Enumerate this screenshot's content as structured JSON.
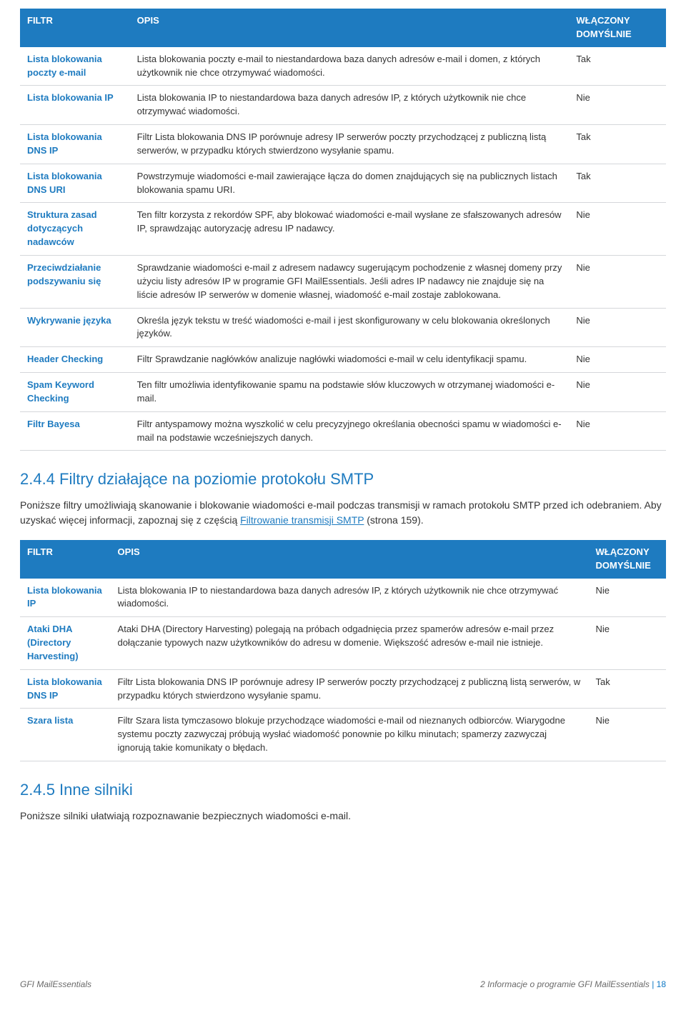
{
  "table1": {
    "headers": {
      "filter": "FILTR",
      "desc": "OPIS",
      "state": "WŁĄCZONY DOMYŚLNIE"
    },
    "rows": [
      {
        "filter": "Lista blokowania poczty e-mail",
        "desc": "Lista blokowania poczty e-mail to niestandardowa baza danych adresów e-mail i domen, z których użytkownik nie chce otrzymywać wiadomości.",
        "state": "Tak"
      },
      {
        "filter": "Lista blokowania IP",
        "desc": "Lista blokowania IP to niestandardowa baza danych adresów IP, z których użytkownik nie chce otrzymywać wiadomości.",
        "state": "Nie"
      },
      {
        "filter": "Lista blokowania DNS IP",
        "desc": "Filtr Lista blokowania DNS IP porównuje adresy IP serwerów poczty przychodzącej z publiczną listą serwerów, w przypadku których stwierdzono wysyłanie spamu.",
        "state": "Tak"
      },
      {
        "filter": "Lista blokowania DNS URI",
        "desc": "Powstrzymuje wiadomości e-mail zawierające łącza do domen znajdujących się na publicznych listach blokowania spamu URI.",
        "state": "Tak"
      },
      {
        "filter": "Struktura zasad dotyczących nadawców",
        "desc": "Ten filtr korzysta z rekordów SPF, aby blokować wiadomości e-mail wysłane ze sfałszowanych adresów IP, sprawdzając autoryzację adresu IP nadawcy.",
        "state": "Nie"
      },
      {
        "filter": "Przeciwdziałanie podszywaniu się",
        "desc": "Sprawdzanie wiadomości e-mail z adresem nadawcy sugerującym pochodzenie z własnej domeny przy użyciu listy adresów IP w programie GFI MailEssentials. Jeśli adres IP nadawcy nie znajduje się na liście adresów IP serwerów w domenie własnej, wiadomość e-mail zostaje zablokowana.",
        "state": "Nie"
      },
      {
        "filter": "Wykrywanie języka",
        "desc": "Określa język tekstu w treść wiadomości e-mail i jest skonfigurowany w celu blokowania określonych języków.",
        "state": "Nie"
      },
      {
        "filter": "Header Checking",
        "desc": "Filtr Sprawdzanie nagłówków analizuje nagłówki wiadomości e-mail w celu identyfikacji spamu.",
        "state": "Nie"
      },
      {
        "filter": "Spam Keyword Checking",
        "desc": "Ten filtr umożliwia identyfikowanie spamu na podstawie słów kluczowych w otrzymanej wiadomości e-mail.",
        "state": "Nie"
      },
      {
        "filter": "Filtr Bayesa",
        "desc": "Filtr antyspamowy można wyszkolić w celu precyzyjnego określania obecności spamu w wiadomości e-mail na podstawie wcześniejszych danych.",
        "state": "Nie"
      }
    ]
  },
  "section244": {
    "title": "2.4.4 Filtry działające na poziomie protokołu SMTP",
    "para_a": "Poniższe filtry umożliwiają skanowanie i blokowanie wiadomości e-mail podczas transmisji w ramach protokołu SMTP przed ich odebraniem. Aby uzyskać więcej informacji, zapoznaj się z częścią ",
    "link": "Filtrowanie transmisji SMTP",
    "para_b": " (strona 159)."
  },
  "table2": {
    "headers": {
      "filter": "FILTR",
      "desc": "OPIS",
      "state": "WŁĄCZONY DOMYŚLNIE"
    },
    "rows": [
      {
        "filter": "Lista blokowania IP",
        "desc": "Lista blokowania IP to niestandardowa baza danych adresów IP, z których użytkownik nie chce otrzymywać wiadomości.",
        "state": "Nie"
      },
      {
        "filter": "Ataki DHA (Directory Harvesting)",
        "desc": "Ataki DHA (Directory Harvesting) polegają na próbach odgadnięcia przez spamerów adresów e-mail przez dołączanie typowych nazw użytkowników do adresu w domenie. Większość adresów e-mail nie istnieje.",
        "state": "Nie"
      },
      {
        "filter": "Lista blokowania DNS IP",
        "desc": "Filtr Lista blokowania DNS IP porównuje adresy IP serwerów poczty przychodzącej z publiczną listą serwerów, w przypadku których stwierdzono wysyłanie spamu.",
        "state": "Tak"
      },
      {
        "filter": "Szara lista",
        "desc": "Filtr Szara lista tymczasowo blokuje przychodzące wiadomości e-mail od nieznanych odbiorców. Wiarygodne systemu poczty zazwyczaj próbują wysłać wiadomość ponownie po kilku minutach; spamerzy zazwyczaj ignorują takie komunikaty o błędach.",
        "state": "Nie"
      }
    ]
  },
  "section245": {
    "title": "2.4.5 Inne silniki",
    "para": "Poniższe silniki ułatwiają rozpoznawanie bezpiecznych wiadomości e-mail."
  },
  "footer": {
    "left": "GFI MailEssentials",
    "right_a": "2 Informacje o programie GFI MailEssentials",
    "page": "18"
  }
}
